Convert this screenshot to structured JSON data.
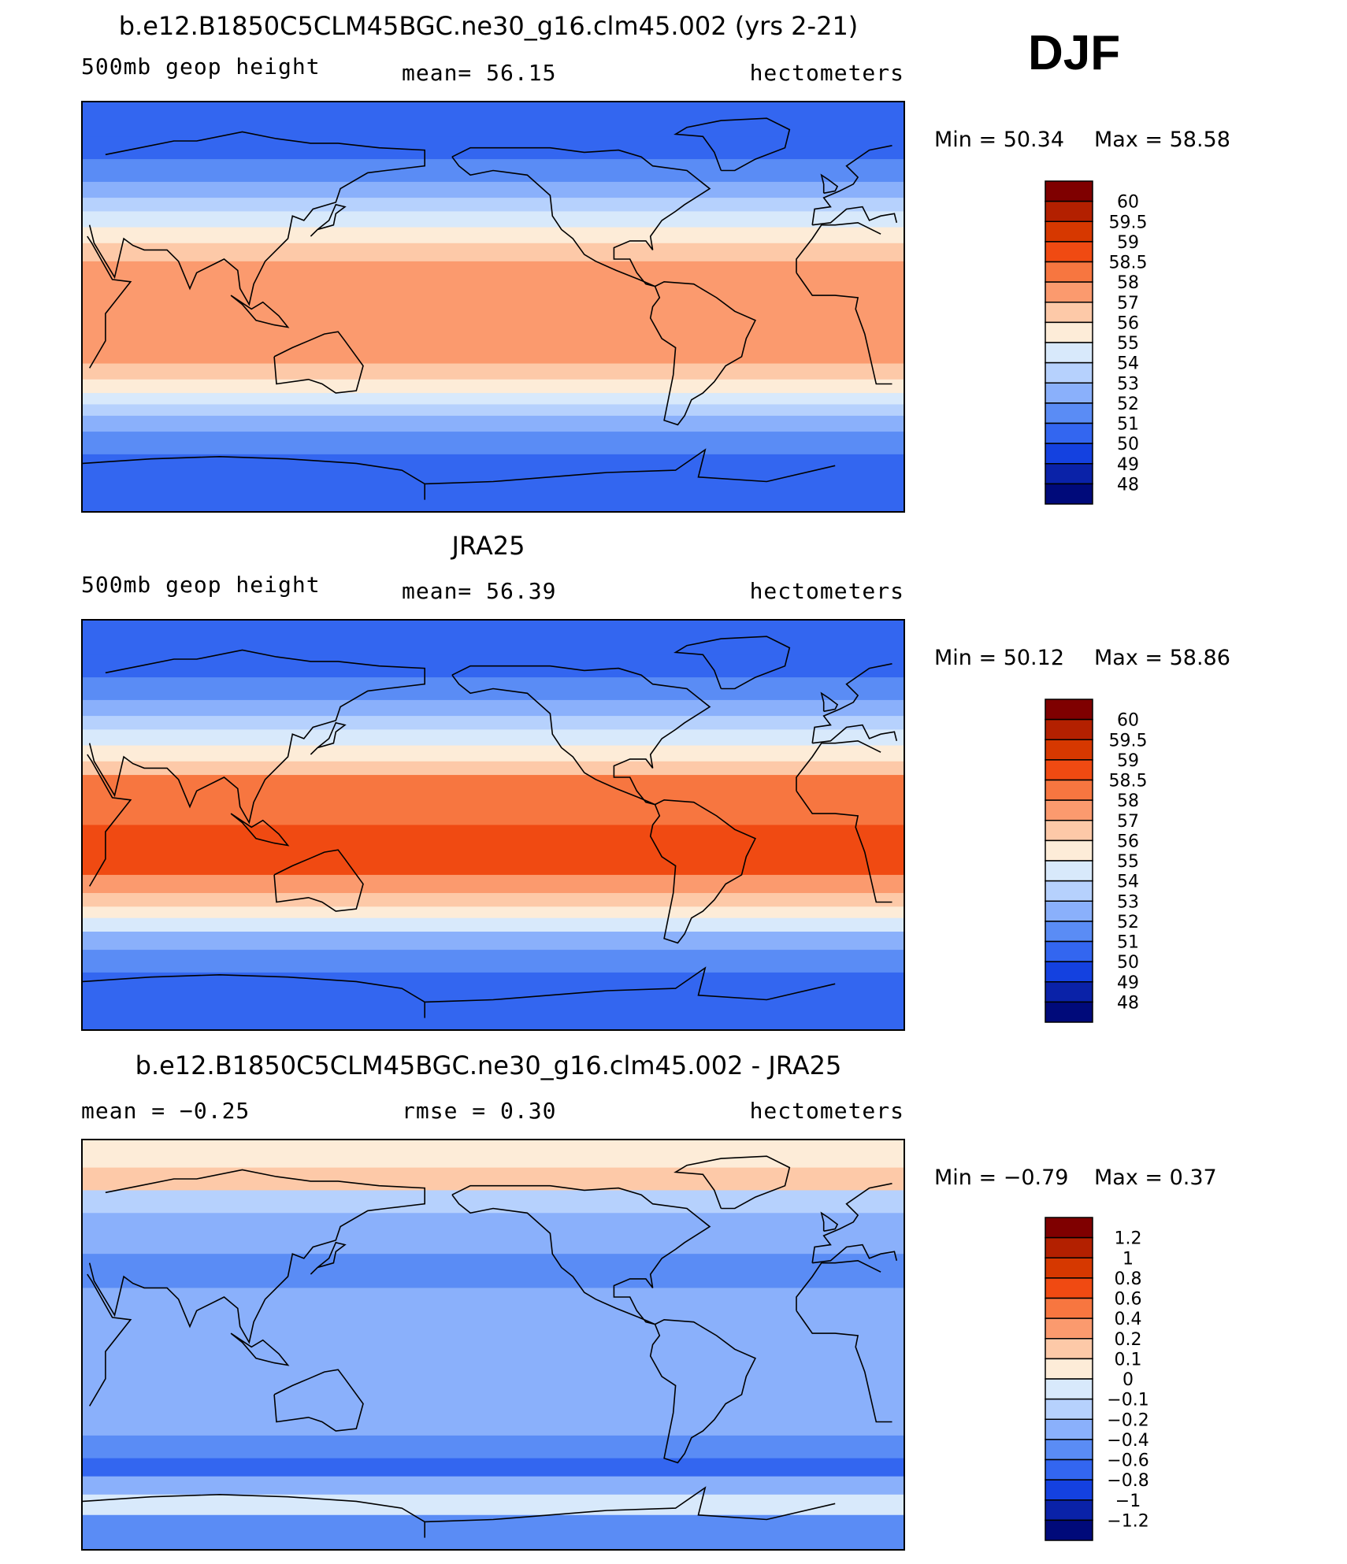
{
  "season": "DJF",
  "chart_data": [
    {
      "type": "heatmap",
      "title": "b.e12.B1850C5CLM45BGC.ne30_g16.clm45.002 (yrs 2-21)",
      "left_label": "500mb geop height",
      "center_label": "mean=   56.15",
      "right_label": "hectometers",
      "mean": 56.15,
      "min_label": "Min =   50.34",
      "max_label": "Max =   58.58",
      "min": 50.34,
      "max": 58.58,
      "colorbar": {
        "levels": [
          "60",
          "59.5",
          "59",
          "58.5",
          "58",
          "57",
          "56",
          "55",
          "54",
          "53",
          "52",
          "51",
          "50",
          "49",
          "48"
        ],
        "colors": [
          "#7f0000",
          "#b32000",
          "#d63800",
          "#f04a12",
          "#f77640",
          "#fb9a6e",
          "#fdc9a8",
          "#fdecd8",
          "#d8e9fb",
          "#b6d1fd",
          "#8ab0fb",
          "#5a8cf5",
          "#3366f0",
          "#1441e0",
          "#0a22a8",
          "#000a7a"
        ]
      },
      "lat_profile": [
        {
          "lat": 90,
          "level": 12
        },
        {
          "lat": 75,
          "level": 12
        },
        {
          "lat": 65,
          "level": 11
        },
        {
          "lat": 55,
          "level": 10
        },
        {
          "lat": 48,
          "level": 9
        },
        {
          "lat": 42,
          "level": 8
        },
        {
          "lat": 35,
          "level": 7
        },
        {
          "lat": 28,
          "level": 6
        },
        {
          "lat": 20,
          "level": 5
        },
        {
          "lat": 0,
          "level": 5
        },
        {
          "lat": -15,
          "level": 5
        },
        {
          "lat": -25,
          "level": 6
        },
        {
          "lat": -32,
          "level": 7
        },
        {
          "lat": -38,
          "level": 8
        },
        {
          "lat": -43,
          "level": 9
        },
        {
          "lat": -48,
          "level": 10
        },
        {
          "lat": -55,
          "level": 11
        },
        {
          "lat": -65,
          "level": 12
        },
        {
          "lat": -90,
          "level": 12
        }
      ]
    },
    {
      "type": "heatmap",
      "title": "JRA25",
      "left_label": "500mb geop height",
      "center_label": "mean=   56.39",
      "right_label": "hectometers",
      "mean": 56.39,
      "min_label": "Min =   50.12",
      "max_label": "Max =   58.86",
      "min": 50.12,
      "max": 58.86,
      "colorbar": {
        "levels": [
          "60",
          "59.5",
          "59",
          "58.5",
          "58",
          "57",
          "56",
          "55",
          "54",
          "53",
          "52",
          "51",
          "50",
          "49",
          "48"
        ],
        "colors": [
          "#7f0000",
          "#b32000",
          "#d63800",
          "#f04a12",
          "#f77640",
          "#fb9a6e",
          "#fdc9a8",
          "#fdecd8",
          "#d8e9fb",
          "#b6d1fd",
          "#8ab0fb",
          "#5a8cf5",
          "#3366f0",
          "#1441e0",
          "#0a22a8",
          "#000a7a"
        ]
      },
      "lat_profile": [
        {
          "lat": 90,
          "level": 12
        },
        {
          "lat": 75,
          "level": 12
        },
        {
          "lat": 65,
          "level": 11
        },
        {
          "lat": 55,
          "level": 10
        },
        {
          "lat": 48,
          "level": 9
        },
        {
          "lat": 42,
          "level": 8
        },
        {
          "lat": 35,
          "level": 7
        },
        {
          "lat": 28,
          "level": 6
        },
        {
          "lat": 22,
          "level": 4
        },
        {
          "lat": 0,
          "level": 3
        },
        {
          "lat": -15,
          "level": 3
        },
        {
          "lat": -22,
          "level": 5
        },
        {
          "lat": -30,
          "level": 6
        },
        {
          "lat": -36,
          "level": 7
        },
        {
          "lat": -41,
          "level": 8
        },
        {
          "lat": -47,
          "level": 10
        },
        {
          "lat": -55,
          "level": 11
        },
        {
          "lat": -65,
          "level": 12
        },
        {
          "lat": -90,
          "level": 12
        }
      ]
    },
    {
      "type": "heatmap",
      "title": "b.e12.B1850C5CLM45BGC.ne30_g16.clm45.002 - JRA25",
      "left_label": "mean =   −0.25",
      "center_label": "rmse =    0.30",
      "right_label": "hectometers",
      "mean": -0.25,
      "rmse": 0.3,
      "min_label": "Min =   −0.79",
      "max_label": "Max =    0.37",
      "min": -0.79,
      "max": 0.37,
      "colorbar": {
        "levels": [
          "1.2",
          "1",
          "0.8",
          "0.6",
          "0.4",
          "0.2",
          "0.1",
          "0",
          "−0.1",
          "−0.2",
          "−0.4",
          "−0.6",
          "−0.8",
          "−1",
          "−1.2"
        ],
        "colors": [
          "#7f0000",
          "#b32000",
          "#d63800",
          "#f04a12",
          "#f77640",
          "#fb9a6e",
          "#fdc9a8",
          "#fdecd8",
          "#d8e9fb",
          "#b6d1fd",
          "#8ab0fb",
          "#5a8cf5",
          "#3366f0",
          "#1441e0",
          "#0a22a8",
          "#000a7a"
        ]
      },
      "lat_profile": [
        {
          "lat": 90,
          "level": 7
        },
        {
          "lat": 78,
          "level": 6
        },
        {
          "lat": 68,
          "level": 9
        },
        {
          "lat": 58,
          "level": 10
        },
        {
          "lat": 40,
          "level": 11
        },
        {
          "lat": 25,
          "level": 10
        },
        {
          "lat": 0,
          "level": 10
        },
        {
          "lat": -25,
          "level": 10
        },
        {
          "lat": -40,
          "level": 11
        },
        {
          "lat": -50,
          "level": 12
        },
        {
          "lat": -58,
          "level": 10
        },
        {
          "lat": -66,
          "level": 8
        },
        {
          "lat": -75,
          "level": 11
        },
        {
          "lat": -90,
          "level": 11
        }
      ]
    }
  ]
}
